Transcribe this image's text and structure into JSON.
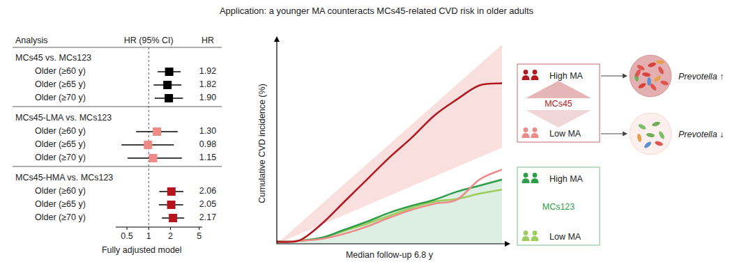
{
  "title": "Application: a younger MA counteracts MCs45-related CVD risk in older adults",
  "chart_data": [
    {
      "type": "forest",
      "orientation": "horizontal",
      "log": "x",
      "columns": [
        "Analysis",
        "HR (95% CI)",
        "HR"
      ],
      "x_label": "Fully adjusted model",
      "xlim": [
        0.35,
        5.5
      ],
      "xticks": [
        0.5,
        1,
        2,
        5
      ],
      "reference_line": 1,
      "data_labels": true,
      "series": [
        {
          "name": "MCs45 vs. MCs123",
          "color": "#000000",
          "marker": "square",
          "categories": [
            "Older (≥60 y)",
            "Older (≥65 y)",
            "Older (≥70 y)"
          ],
          "values": [
            1.92,
            1.82,
            1.9
          ],
          "value_labels": [
            "1.92",
            "1.82",
            "1.90"
          ],
          "lower": [
            1.33,
            1.17,
            1.21
          ],
          "upper": [
            2.77,
            2.84,
            2.98
          ]
        },
        {
          "name": "MCs45-LMA vs. MCs123",
          "color": "#f08a86",
          "marker": "square",
          "categories": [
            "Older (≥60 y)",
            "Older (≥65 y)",
            "Older (≥70 y)"
          ],
          "values": [
            1.3,
            0.98,
            1.15
          ],
          "value_labels": [
            "1.30",
            "0.98",
            "1.15"
          ],
          "lower": [
            0.67,
            0.42,
            0.51
          ],
          "upper": [
            2.52,
            2.23,
            2.88
          ]
        },
        {
          "name": "MCs45-HMA vs. MCs123",
          "color": "#b3161d",
          "marker": "square",
          "categories": [
            "Older (≥60 y)",
            "Older (≥65 y)",
            "Older (≥70 y)"
          ],
          "values": [
            2.06,
            2.05,
            2.17
          ],
          "value_labels": [
            "2.06",
            "2.05",
            "2.17"
          ],
          "lower": [
            1.4,
            1.38,
            1.52
          ],
          "upper": [
            3.02,
            3.0,
            3.1
          ]
        }
      ]
    },
    {
      "type": "line",
      "y_label": "Cumulative CVD incidence (%)",
      "x_label": "Median follow-up 6.8 y",
      "x": [
        0,
        1,
        2,
        3,
        4,
        5,
        6,
        7,
        8,
        9,
        10
      ],
      "xlim": [
        0,
        10
      ],
      "ylim": [
        0,
        100
      ],
      "tick_labels": false,
      "legend": "right",
      "series": [
        {
          "name": "High MA",
          "group": "MCs45",
          "color": "#b01a20",
          "microbiome": "Prevotella ↑",
          "values": [
            1,
            1.7,
            10,
            21,
            32,
            43,
            53,
            64,
            72,
            79,
            80
          ]
        },
        {
          "name": "Low MA",
          "group": "MCs45",
          "color": "#ec8c88",
          "microbiome": "Prevotella ↓",
          "values": [
            1,
            1.5,
            2.4,
            5,
            8.6,
            13,
            17,
            20,
            22,
            32,
            37
          ]
        },
        {
          "name": "High MA",
          "group": "MCs123",
          "color": "#2e9e48",
          "values": [
            1,
            1.5,
            3,
            7,
            11,
            15.5,
            19,
            22,
            26,
            29,
            32
          ]
        },
        {
          "name": "Low MA",
          "group": "MCs123",
          "color": "#9ccc5c",
          "values": [
            1,
            1.5,
            3,
            6.5,
            10,
            14,
            18,
            21,
            22.4,
            25,
            27
          ]
        }
      ]
    }
  ]
}
